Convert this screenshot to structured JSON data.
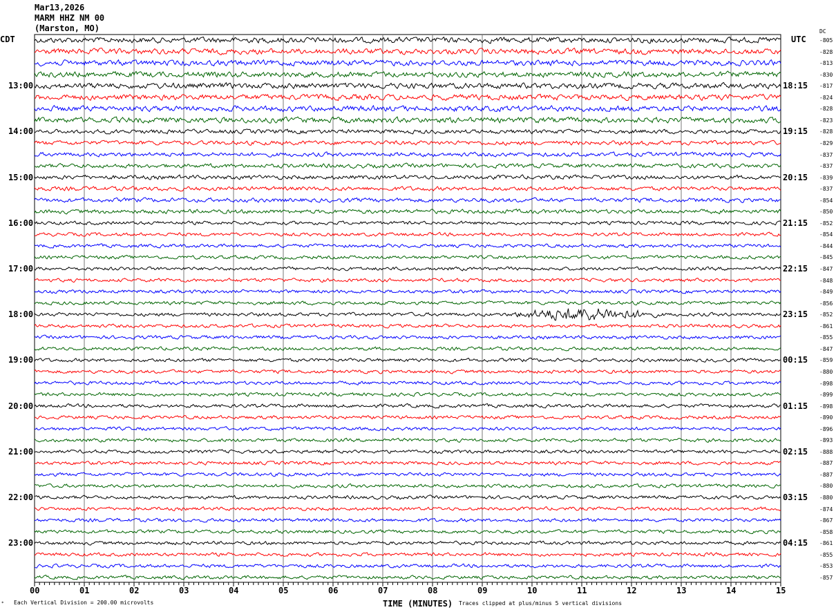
{
  "header": {
    "date": "Mar13,2026",
    "station": "MARM HHZ NM 00",
    "location": "(Marston, MO)"
  },
  "left_tz": "CDT",
  "right_tz": "UTC",
  "dc_label": "DC",
  "footer": {
    "scale": "Each Vertical Division =  200.00 microvolts",
    "xlabel": "TIME (MINUTES)",
    "clip_note": "Traces clipped at plus/minus 5 vertical divisions"
  },
  "chart_data": {
    "type": "line",
    "xlabel": "TIME (MINUTES)",
    "xlim": [
      0,
      15
    ],
    "x_ticks": [
      "00",
      "01",
      "02",
      "03",
      "04",
      "05",
      "06",
      "07",
      "08",
      "09",
      "10",
      "11",
      "12",
      "13",
      "14",
      "15"
    ],
    "trace_count": 48,
    "trace_colors": [
      "#000000",
      "#ff0000",
      "#0000ff",
      "#006400"
    ],
    "left_hour_labels": [
      "13:00",
      "14:00",
      "15:00",
      "16:00",
      "17:00",
      "18:00",
      "19:00",
      "20:00",
      "21:00",
      "22:00",
      "23:00"
    ],
    "right_hour_labels": [
      "18:15",
      "19:15",
      "20:15",
      "21:15",
      "22:15",
      "23:15",
      "00:15",
      "01:15",
      "02:15",
      "03:15",
      "04:15"
    ],
    "dc_offsets": [
      -805,
      -828,
      -813,
      -830,
      -817,
      -824,
      -828,
      -823,
      -828,
      -829,
      -837,
      -837,
      -839,
      -837,
      -854,
      -850,
      -852,
      -854,
      -844,
      -845,
      -847,
      -848,
      -849,
      -856,
      -852,
      -861,
      -855,
      -847,
      -859,
      -880,
      -898,
      -899,
      -898,
      -890,
      -896,
      -893,
      -888,
      -887,
      -887,
      -880,
      -880,
      -874,
      -867,
      -858,
      -861,
      -855,
      -853,
      -857
    ],
    "event": {
      "trace_index": 24,
      "start_minute": 9.5,
      "end_minute": 12.6
    }
  }
}
